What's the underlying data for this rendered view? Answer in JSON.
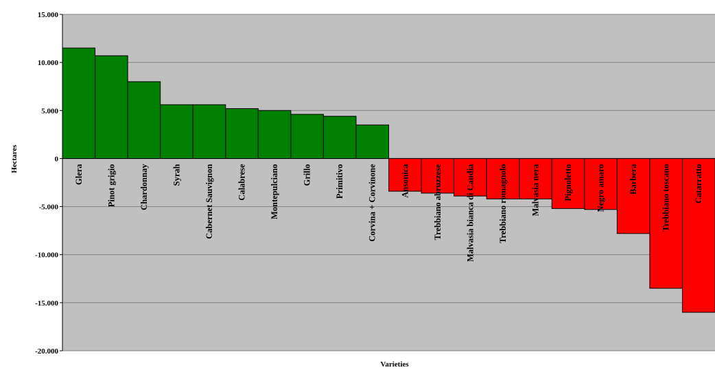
{
  "chart_data": {
    "type": "bar",
    "title": "",
    "xlabel": "Varieties",
    "ylabel": "Hectares",
    "ylim": [
      -20000,
      15000
    ],
    "yticks": [
      15000,
      10000,
      5000,
      0,
      -5000,
      -10000,
      -15000,
      -20000
    ],
    "ytick_labels": [
      "15.000",
      "10.000",
      "5.000",
      "0",
      "-5.000",
      "-10.000",
      "-15.000",
      "-20.000"
    ],
    "grid": "horizontal",
    "legend": "none",
    "categories": [
      "Glera",
      "Pinot grigio",
      "Chardonnay",
      "Syrah",
      "Cabernet Sauvignon",
      "Calabrese",
      "Montepulciano",
      "Grillo",
      "Primitivo",
      "Corvina + Corvinone",
      "Ansonica",
      "Trebbiano abruzzese",
      "Malvasia bianca di Candia",
      "Trebbiano romagnolo",
      "Malvasia nera",
      "Pignoletto",
      "Negro amaro",
      "Barbera",
      "Trebbiano toscano",
      "Catarratto"
    ],
    "values": [
      11500,
      10700,
      8000,
      5600,
      5600,
      5200,
      5000,
      4600,
      4400,
      3500,
      -3400,
      -3600,
      -3900,
      -4200,
      -4200,
      -5200,
      -5300,
      -7800,
      -13500,
      -16000
    ]
  },
  "colors": {
    "plot_background": "#c0c0c0",
    "positive_bar": "#008000",
    "negative_bar": "#ff0000",
    "gridline": "#808080",
    "bar_outline": "#000000"
  }
}
